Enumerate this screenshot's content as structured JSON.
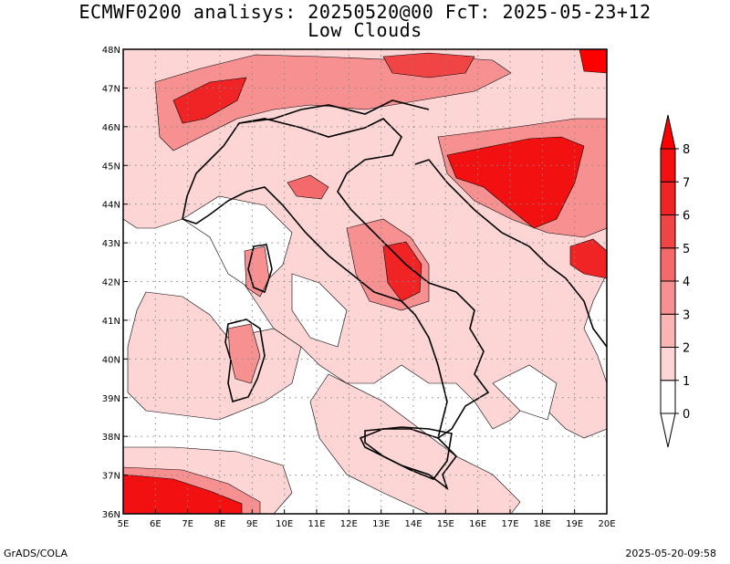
{
  "header": {
    "title_line1": "ECMWF0200 analisys: 20250520@00 FcT: 2025-05-23+12",
    "title_line2": "Low Clouds"
  },
  "map": {
    "lon_range": [
      5,
      20
    ],
    "lat_range": [
      36,
      48
    ],
    "lon_labels": [
      "5E",
      "6E",
      "7E",
      "8E",
      "9E",
      "10E",
      "11E",
      "12E",
      "13E",
      "14E",
      "15E",
      "16E",
      "17E",
      "18E",
      "19E",
      "20E"
    ],
    "lat_labels": [
      "36N",
      "37N",
      "38N",
      "39N",
      "40N",
      "41N",
      "42N",
      "43N",
      "44N",
      "45N",
      "46N",
      "47N",
      "48N"
    ],
    "gridlines": "dotted",
    "coastline_color": "#000000"
  },
  "colorbar": {
    "levels": [
      "0",
      "1",
      "2",
      "3",
      "4",
      "5",
      "6",
      "7",
      "8"
    ],
    "colors": [
      "#ffffff",
      "#fdd5d5",
      "#fbb4b4",
      "#f79090",
      "#f46a6a",
      "#f14444",
      "#f02424",
      "#f21010",
      "#ff0000"
    ]
  },
  "footer": {
    "left": "GrADS/COLA",
    "right": "2025-05-20-09:58"
  }
}
